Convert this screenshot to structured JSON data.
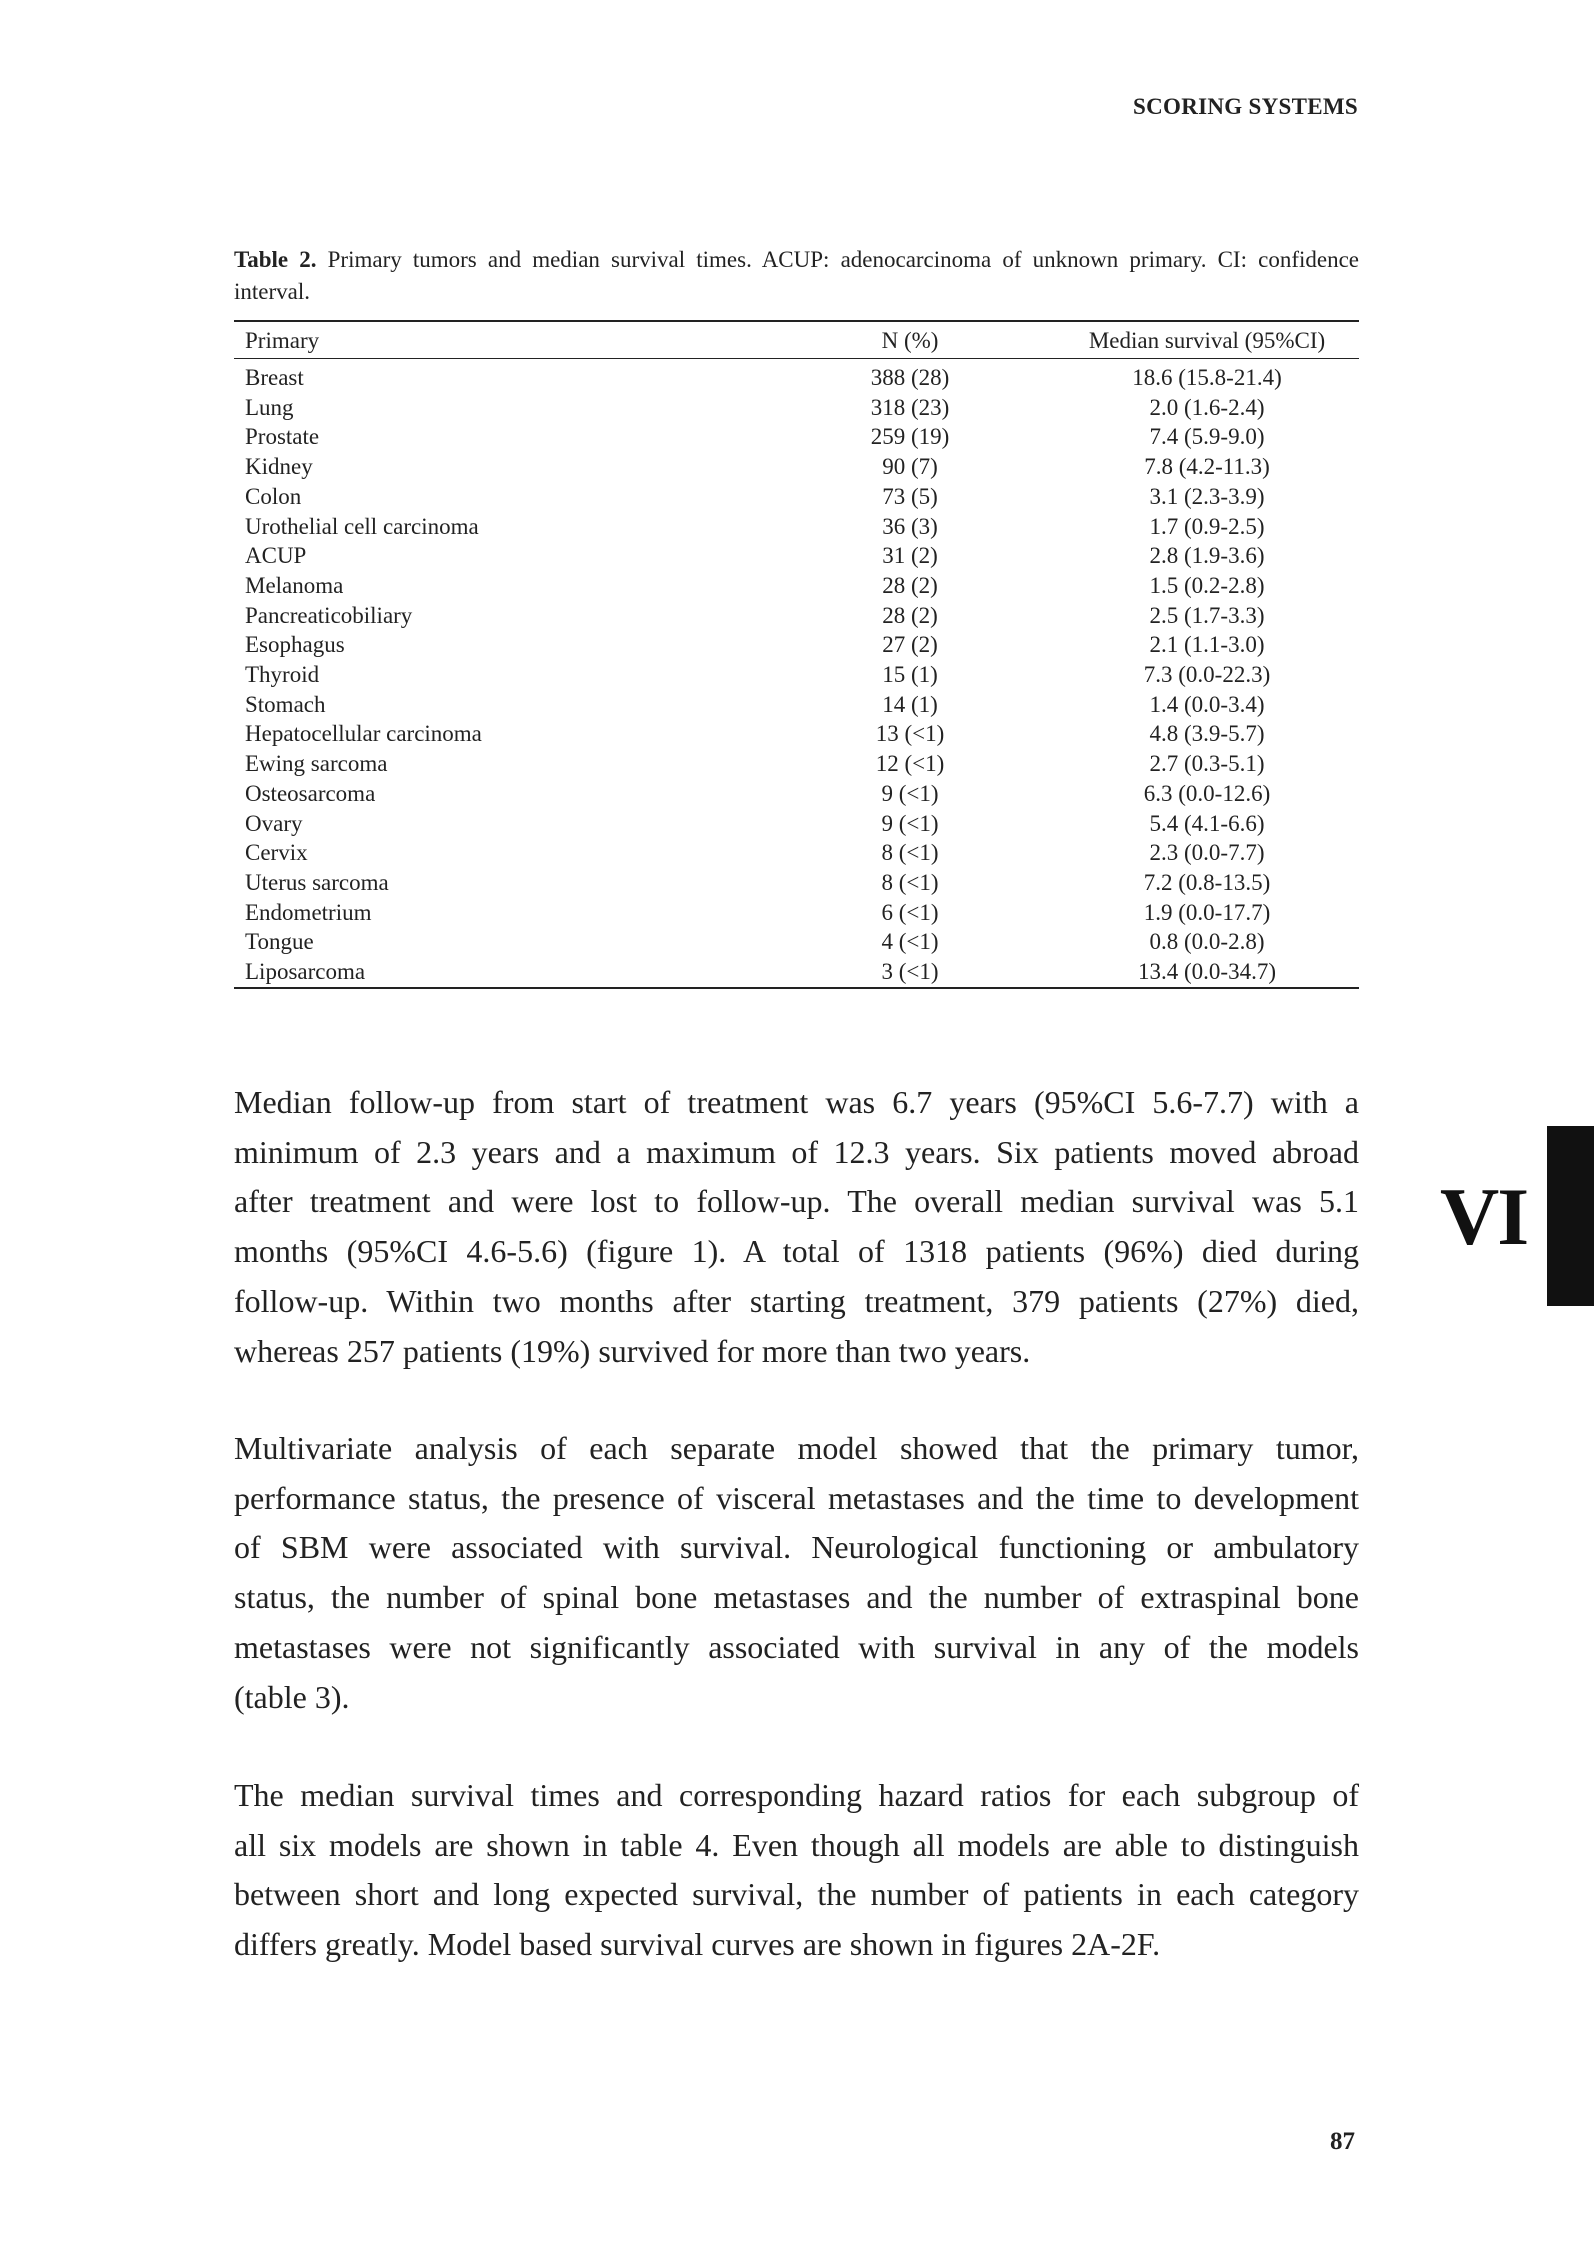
{
  "running_head": "SCORING SYSTEMS",
  "table": {
    "caption_label": "Table 2.",
    "caption_text": " Primary tumors and median survival times. ACUP: adenocarcinoma of unknown primary. CI: confidence interval.",
    "headers": [
      "Primary",
      "N (%)",
      "Median survival (95%CI)"
    ],
    "rows": [
      [
        "Breast",
        "388 (28)",
        "18.6 (15.8-21.4)"
      ],
      [
        "Lung",
        "318 (23)",
        "2.0 (1.6-2.4)"
      ],
      [
        "Prostate",
        "259 (19)",
        "7.4 (5.9-9.0)"
      ],
      [
        "Kidney",
        "90 (7)",
        "7.8 (4.2-11.3)"
      ],
      [
        "Colon",
        "73 (5)",
        "3.1 (2.3-3.9)"
      ],
      [
        "Urothelial cell carcinoma",
        "36 (3)",
        "1.7 (0.9-2.5)"
      ],
      [
        "ACUP",
        "31 (2)",
        "2.8 (1.9-3.6)"
      ],
      [
        "Melanoma",
        "28 (2)",
        "1.5 (0.2-2.8)"
      ],
      [
        "Pancreaticobiliary",
        "28 (2)",
        "2.5 (1.7-3.3)"
      ],
      [
        "Esophagus",
        "27 (2)",
        "2.1 (1.1-3.0)"
      ],
      [
        "Thyroid",
        "15 (1)",
        "7.3 (0.0-22.3)"
      ],
      [
        "Stomach",
        "14 (1)",
        "1.4 (0.0-3.4)"
      ],
      [
        "Hepatocellular carcinoma",
        "13 (<1)",
        "4.8 (3.9-5.7)"
      ],
      [
        "Ewing sarcoma",
        "12 (<1)",
        "2.7 (0.3-5.1)"
      ],
      [
        "Osteosarcoma",
        "9 (<1)",
        "6.3 (0.0-12.6)"
      ],
      [
        "Ovary",
        "9 (<1)",
        "5.4 (4.1-6.6)"
      ],
      [
        "Cervix",
        "8 (<1)",
        "2.3 (0.0-7.7)"
      ],
      [
        "Uterus sarcoma",
        "8 (<1)",
        "7.2 (0.8-13.5)"
      ],
      [
        "Endometrium",
        "6 (<1)",
        "1.9 (0.0-17.7)"
      ],
      [
        "Tongue",
        "4 (<1)",
        "0.8 (0.0-2.8)"
      ],
      [
        "Liposarcoma",
        "3 (<1)",
        "13.4 (0.0-34.7)"
      ]
    ]
  },
  "paragraphs": [
    [
      "Median follow-up from start of treatment was 6.7 years (95%CI 5.6-7.7) with a",
      "minimum of 2.3 years and a maximum of 12.3 years. Six patients moved abroad",
      "after treatment and were lost to follow-up. The overall median survival was 5.1",
      "months (95%CI 4.6-5.6) (figure 1). A total of 1318 patients (96%) died during",
      "follow-up. Within two months after starting treatment, 379 patients (27%) died,",
      "whereas 257 patients (19%) survived for more than two years."
    ],
    [
      "Multivariate analysis of each separate model showed that the primary tumor,",
      "performance status, the presence of visceral metastases and the time to development",
      "of SBM were associated with survival. Neurological functioning or ambulatory",
      "status, the number of spinal bone metastases and the number of extraspinal bone",
      "metastases were not significantly associated with survival in any of the models",
      "(table 3)."
    ],
    [
      "The median survival times and corresponding hazard ratios for each subgroup of",
      "all six models are shown in table 4. Even though all models are able to distinguish",
      "between short and long expected survival, the number of patients in each category",
      "differs greatly. Model based survival curves are shown in figures 2A-2F."
    ]
  ],
  "chapter_tab": "VI",
  "page_number": "87"
}
